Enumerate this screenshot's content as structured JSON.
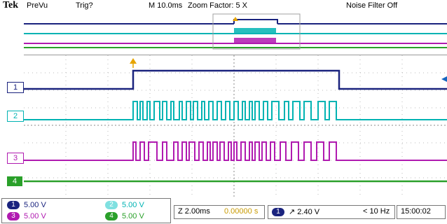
{
  "header": {
    "brand": "Tek",
    "mode": "PreVu",
    "trigger_status": "Trig?",
    "timebase": "M 10.0ms",
    "zoom_factor": "Zoom Factor: 5 X",
    "noise_filter": "Noise Filter Off"
  },
  "channels": [
    {
      "number": "1",
      "scale": "5.00 V",
      "color": "#1a237e"
    },
    {
      "number": "2",
      "scale": "5.00 V",
      "color": "#00b3b3"
    },
    {
      "number": "3",
      "scale": "5.00 V",
      "color": "#b01ab0"
    },
    {
      "number": "4",
      "scale": "5.00 V",
      "color": "#2aa02a"
    }
  ],
  "status_bar": {
    "zoom_timebase": "Z 2.00ms",
    "trigger_position": "0.00000 s",
    "trigger_source": "1",
    "trigger_level": "↗ 2.40 V",
    "frequency": "< 10 Hz",
    "clock": "15:00:02"
  },
  "icons": {
    "trigger_marker": "trigger-position-icon",
    "slope": "rising-edge-icon"
  }
}
